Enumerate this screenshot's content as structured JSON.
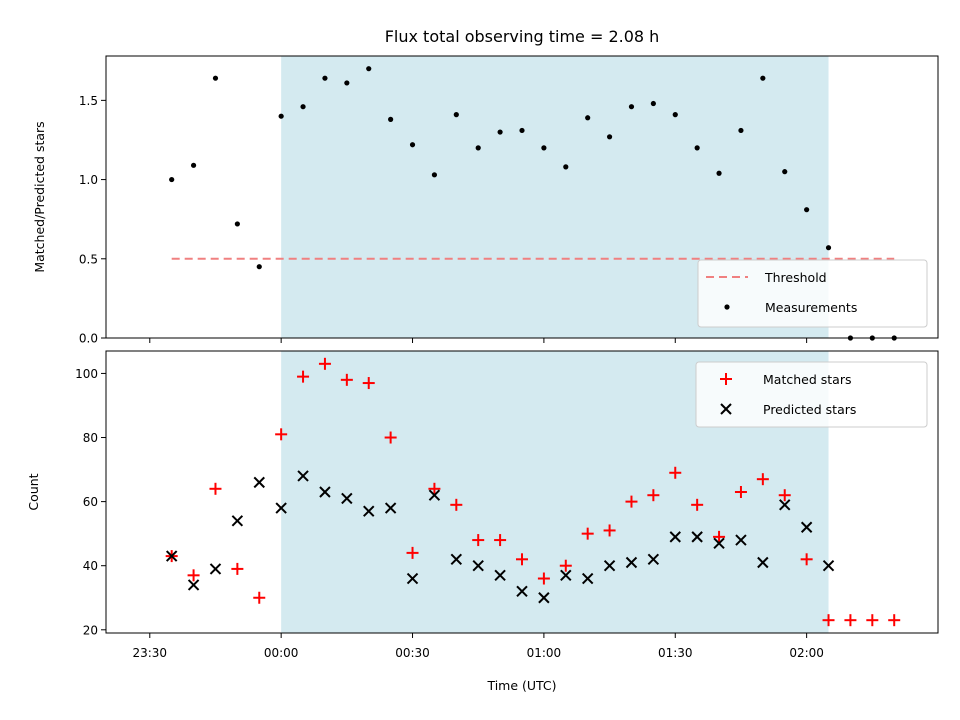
{
  "chart_data": {
    "type": "scatter",
    "title": "Flux total observing time = 2.08 h",
    "xlabel": "Time (UTC)",
    "x_unit": "HH:MM",
    "xlim": [
      "23:20",
      "02:30"
    ],
    "x_ticks": [
      "23:30",
      "00:00",
      "00:30",
      "01:00",
      "01:30",
      "02:00"
    ],
    "x": [
      "23:35",
      "23:40",
      "23:45",
      "23:50",
      "23:55",
      "00:00",
      "00:05",
      "00:10",
      "00:15",
      "00:20",
      "00:25",
      "00:30",
      "00:35",
      "00:40",
      "00:45",
      "00:50",
      "00:55",
      "01:00",
      "01:05",
      "01:10",
      "01:15",
      "01:20",
      "01:25",
      "01:30",
      "01:35",
      "01:40",
      "01:45",
      "01:50",
      "01:55",
      "02:00",
      "02:05",
      "02:10",
      "02:15",
      "02:20"
    ],
    "observing_window": {
      "start": "00:00",
      "end": "02:05",
      "color": "#d4eaf0"
    },
    "panels": [
      {
        "ylabel": "Matched/Predicted stars",
        "ylim": [
          0,
          1.78
        ],
        "y_ticks": [
          "0.0",
          "0.5",
          "1.0",
          "1.5"
        ],
        "legend_position": "lower right",
        "series": [
          {
            "name": "Threshold",
            "kind": "dashed-line",
            "color": "#f08080",
            "x_range": [
              "23:35",
              "02:20"
            ],
            "value": 0.5
          },
          {
            "name": "Measurements",
            "kind": "dot",
            "color": "#000000",
            "values": [
              1.0,
              1.09,
              1.64,
              0.72,
              0.45,
              1.4,
              1.46,
              1.64,
              1.61,
              1.7,
              1.38,
              1.22,
              1.03,
              1.41,
              1.2,
              1.3,
              1.31,
              1.2,
              1.08,
              1.39,
              1.27,
              1.46,
              1.48,
              1.41,
              1.2,
              1.04,
              1.31,
              1.64,
              1.05,
              0.81,
              0.57,
              0.0,
              0.0,
              0.0
            ]
          }
        ]
      },
      {
        "ylabel": "Count",
        "ylim": [
          19,
          107
        ],
        "y_ticks": [
          "20",
          "40",
          "60",
          "80",
          "100"
        ],
        "legend_position": "upper right",
        "series": [
          {
            "name": "Matched stars",
            "kind": "plus",
            "color": "#ff0000",
            "values": [
              43,
              37,
              64,
              39,
              30,
              81,
              99,
              103,
              98,
              97,
              80,
              44,
              64,
              59,
              48,
              48,
              42,
              36,
              40,
              50,
              51,
              60,
              62,
              69,
              59,
              49,
              63,
              67,
              62,
              42,
              23,
              23,
              23,
              23
            ]
          },
          {
            "name": "Predicted stars",
            "kind": "x",
            "color": "#000000",
            "values": [
              43,
              34,
              39,
              54,
              66,
              58,
              68,
              63,
              61,
              57,
              58,
              36,
              62,
              42,
              40,
              37,
              32,
              30,
              37,
              36,
              40,
              41,
              42,
              49,
              49,
              47,
              48,
              41,
              59,
              52,
              40
            ]
          }
        ]
      }
    ]
  }
}
